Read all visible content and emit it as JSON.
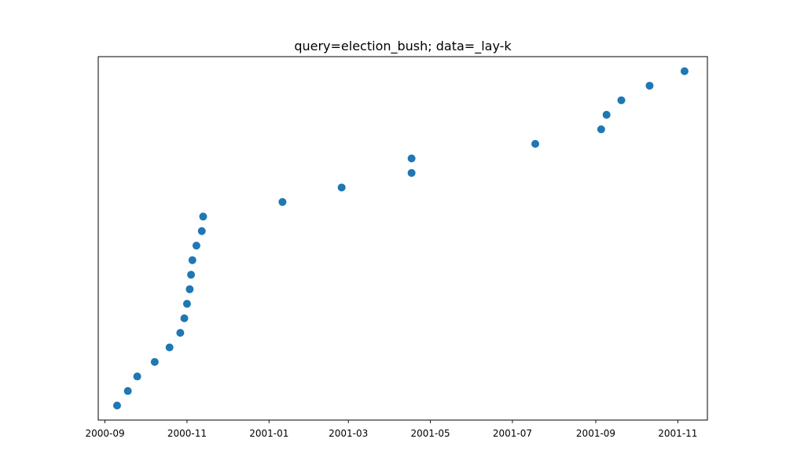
{
  "chart_data": {
    "type": "scatter",
    "title": "query=election_bush; data=_lay-k",
    "xlabel": "",
    "ylabel": "",
    "x_axis_type": "date",
    "xlim": [
      "2000-08-27",
      "2001-11-23"
    ],
    "x_ticks": [
      "2000-09",
      "2000-11",
      "2001-01",
      "2001-03",
      "2001-05",
      "2001-07",
      "2001-09",
      "2001-11"
    ],
    "y_axis_visible": false,
    "y_meaning": "rank",
    "ylim": [
      0,
      25
    ],
    "grid": false,
    "legend": "none",
    "marker_color": "#1f77b4",
    "background": "#ffffff",
    "points": [
      {
        "x": "2000-09-10",
        "y": 1
      },
      {
        "x": "2000-09-18",
        "y": 2
      },
      {
        "x": "2000-09-25",
        "y": 3
      },
      {
        "x": "2000-10-08",
        "y": 4
      },
      {
        "x": "2000-10-19",
        "y": 5
      },
      {
        "x": "2000-10-27",
        "y": 6
      },
      {
        "x": "2000-10-30",
        "y": 7
      },
      {
        "x": "2000-11-01",
        "y": 8
      },
      {
        "x": "2000-11-03",
        "y": 9
      },
      {
        "x": "2000-11-04",
        "y": 10
      },
      {
        "x": "2000-11-05",
        "y": 11
      },
      {
        "x": "2000-11-08",
        "y": 12
      },
      {
        "x": "2000-11-12",
        "y": 13
      },
      {
        "x": "2000-11-13",
        "y": 14
      },
      {
        "x": "2001-01-11",
        "y": 15
      },
      {
        "x": "2001-02-24",
        "y": 16
      },
      {
        "x": "2001-04-17",
        "y": 17
      },
      {
        "x": "2001-04-17",
        "y": 18
      },
      {
        "x": "2001-07-18",
        "y": 19
      },
      {
        "x": "2001-09-05",
        "y": 20
      },
      {
        "x": "2001-09-09",
        "y": 21
      },
      {
        "x": "2001-09-20",
        "y": 22
      },
      {
        "x": "2001-10-11",
        "y": 23
      },
      {
        "x": "2001-11-06",
        "y": 24
      }
    ]
  }
}
